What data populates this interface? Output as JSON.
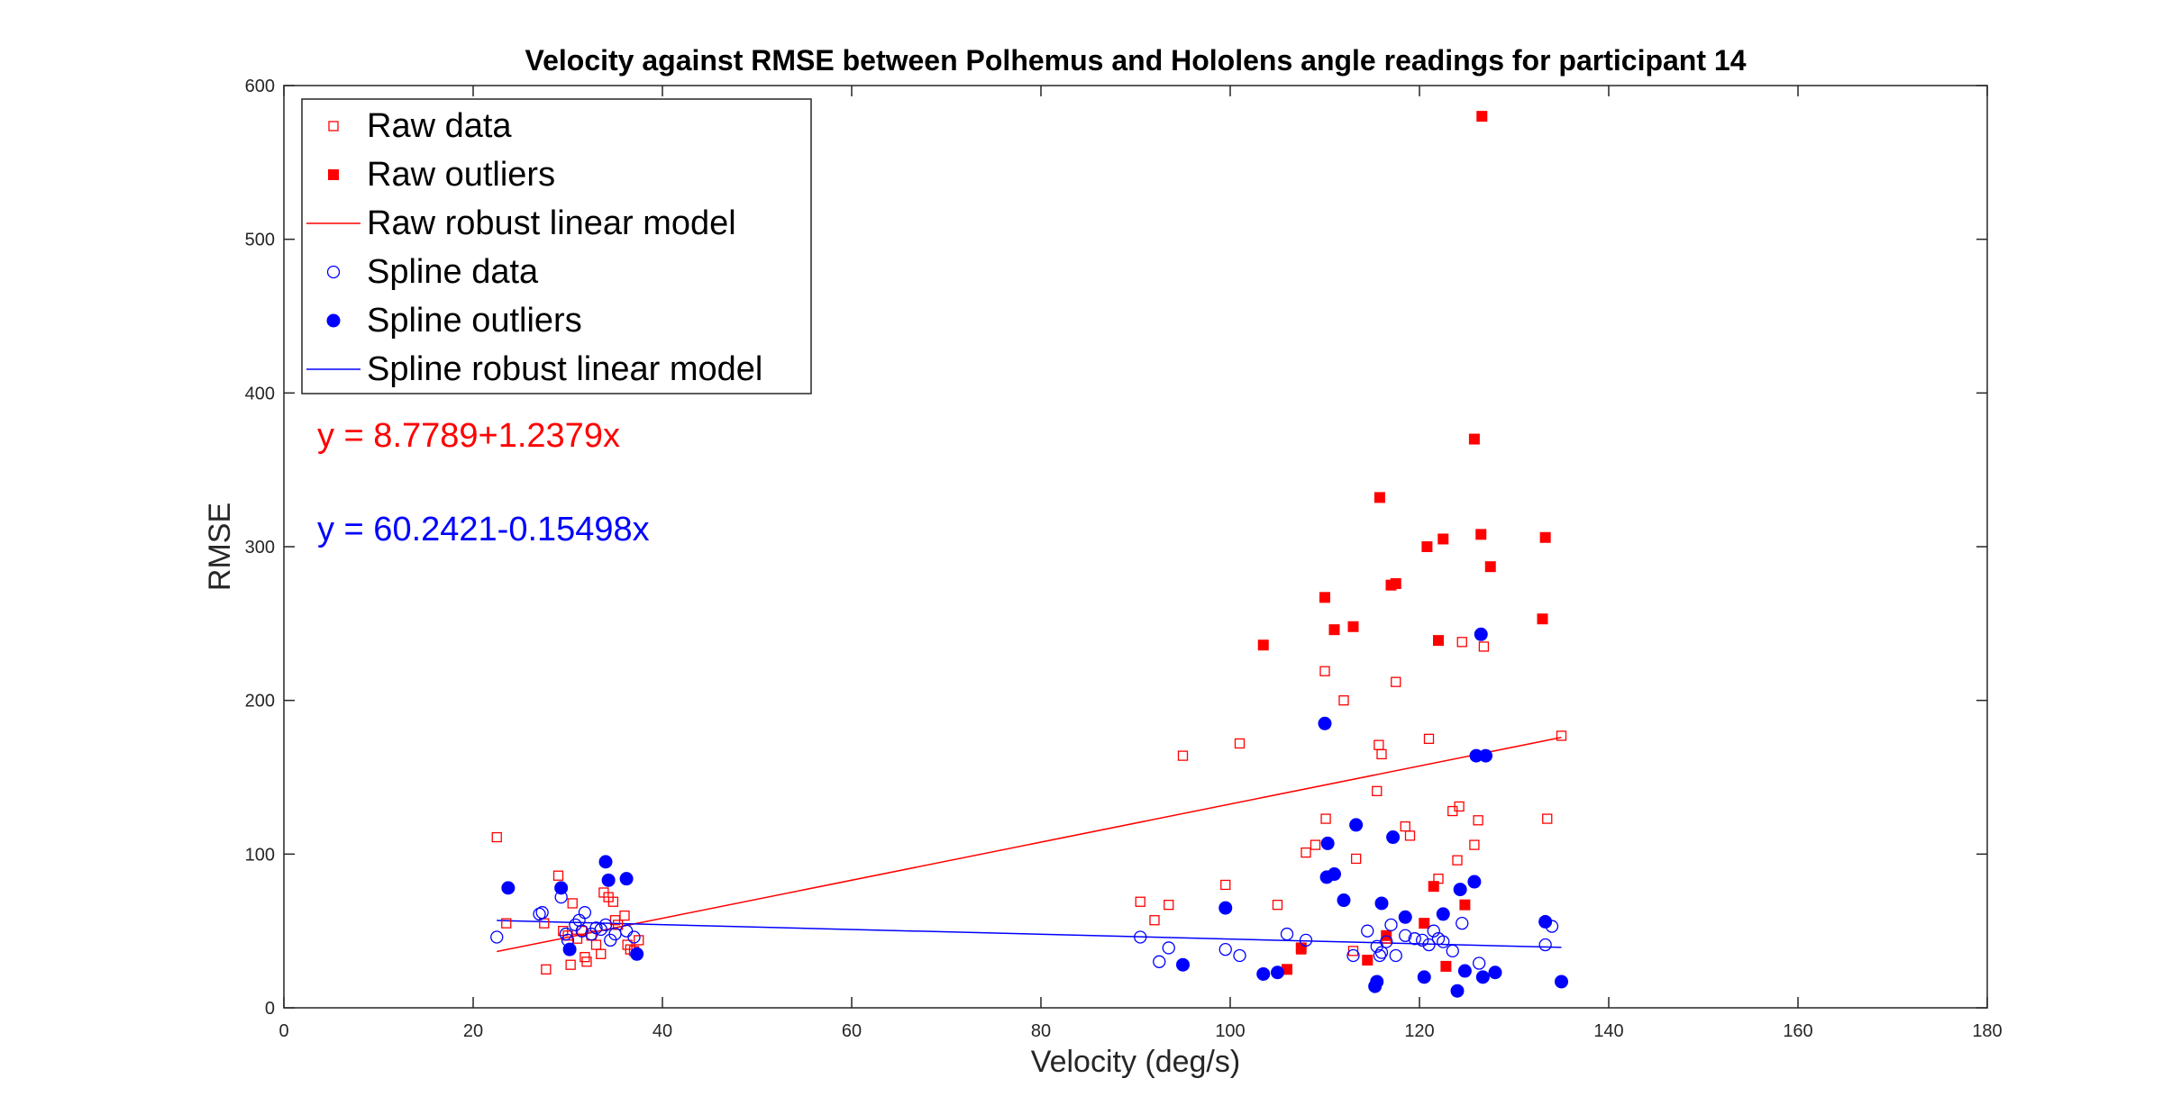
{
  "chart_data": {
    "type": "scatter",
    "title": "Velocity against RMSE between Polhemus and Hololens angle readings for participant 14",
    "xlabel": "Velocity (deg/s)",
    "ylabel": "RMSE",
    "xlim": [
      0,
      180
    ],
    "ylim": [
      0,
      600
    ],
    "xticks": [
      0,
      20,
      40,
      60,
      80,
      100,
      120,
      140,
      160,
      180
    ],
    "yticks": [
      0,
      100,
      200,
      300,
      400,
      500,
      600
    ],
    "grid": false,
    "legend_position": "top-left",
    "annotations": [
      {
        "text": "y = 8.7789+1.2379x",
        "color": "#ff0000"
      },
      {
        "text": "y = 60.2421-0.15498x",
        "color": "#0000ff"
      }
    ],
    "series": [
      {
        "name": "Raw data",
        "kind": "points",
        "marker": "square-open",
        "color": "#ff0000",
        "points": [
          [
            22.5,
            111
          ],
          [
            23.5,
            55
          ],
          [
            27.5,
            55
          ],
          [
            27.7,
            25
          ],
          [
            29,
            86
          ],
          [
            29.5,
            50
          ],
          [
            30,
            47
          ],
          [
            30.3,
            28
          ],
          [
            30.5,
            68
          ],
          [
            31,
            45
          ],
          [
            31.5,
            50
          ],
          [
            31.8,
            33
          ],
          [
            32,
            30
          ],
          [
            32.5,
            47
          ],
          [
            33,
            41
          ],
          [
            33.5,
            35
          ],
          [
            33.8,
            75
          ],
          [
            34.3,
            72
          ],
          [
            34.8,
            69
          ],
          [
            35,
            57
          ],
          [
            35.3,
            54
          ],
          [
            36,
            60
          ],
          [
            36.3,
            41
          ],
          [
            36.6,
            38
          ],
          [
            37,
            37
          ],
          [
            37.5,
            44
          ],
          [
            90.5,
            69
          ],
          [
            92,
            57
          ],
          [
            93.5,
            67
          ],
          [
            95,
            164
          ],
          [
            99.5,
            80
          ],
          [
            101,
            172
          ],
          [
            105,
            67
          ],
          [
            107.5,
            38
          ],
          [
            108,
            101
          ],
          [
            109,
            106
          ],
          [
            110,
            219
          ],
          [
            110.1,
            123
          ],
          [
            112,
            200
          ],
          [
            113,
            37
          ],
          [
            113.3,
            97
          ],
          [
            115.5,
            141
          ],
          [
            115.7,
            171
          ],
          [
            116,
            165
          ],
          [
            116.5,
            45
          ],
          [
            117.5,
            212
          ],
          [
            118.5,
            118
          ],
          [
            119,
            112
          ],
          [
            121,
            175
          ],
          [
            122,
            84
          ],
          [
            123.5,
            128
          ],
          [
            124,
            96
          ],
          [
            124.2,
            131
          ],
          [
            124.5,
            238
          ],
          [
            125.8,
            106
          ],
          [
            126.2,
            122
          ],
          [
            126.8,
            235
          ],
          [
            133.5,
            123
          ],
          [
            135,
            177
          ]
        ]
      },
      {
        "name": "Raw outliers",
        "kind": "points",
        "marker": "square-filled",
        "color": "#ff0000",
        "points": [
          [
            103.5,
            236
          ],
          [
            106,
            25
          ],
          [
            107.5,
            39
          ],
          [
            110,
            267
          ],
          [
            111,
            246
          ],
          [
            113,
            248
          ],
          [
            114.5,
            31
          ],
          [
            115.8,
            332
          ],
          [
            116.5,
            47
          ],
          [
            117,
            275
          ],
          [
            117.5,
            276
          ],
          [
            120.5,
            55
          ],
          [
            120.8,
            300
          ],
          [
            121.5,
            79
          ],
          [
            122,
            239
          ],
          [
            122.5,
            305
          ],
          [
            122.8,
            27
          ],
          [
            124.8,
            67
          ],
          [
            125.8,
            370
          ],
          [
            126.5,
            308
          ],
          [
            126.6,
            580
          ],
          [
            127.5,
            287
          ],
          [
            133,
            253
          ],
          [
            133.3,
            306
          ]
        ]
      },
      {
        "name": "Raw robust linear model",
        "kind": "line",
        "color": "#ff0000",
        "points": [
          [
            22.5,
            36.6
          ],
          [
            135,
            175.9
          ]
        ]
      },
      {
        "name": "Spline data",
        "kind": "points",
        "marker": "circle-open",
        "color": "#0000ff",
        "points": [
          [
            22.5,
            46
          ],
          [
            27,
            61
          ],
          [
            27.3,
            62
          ],
          [
            29.3,
            72
          ],
          [
            29.8,
            48
          ],
          [
            30,
            44
          ],
          [
            30.8,
            54
          ],
          [
            31.2,
            57
          ],
          [
            31.5,
            50
          ],
          [
            31.8,
            62
          ],
          [
            32.5,
            48
          ],
          [
            33,
            52
          ],
          [
            33.5,
            51
          ],
          [
            34,
            54
          ],
          [
            34.5,
            44
          ],
          [
            35,
            48
          ],
          [
            36.2,
            50
          ],
          [
            37,
            46
          ],
          [
            90.5,
            46
          ],
          [
            92.5,
            30
          ],
          [
            93.5,
            39
          ],
          [
            99.5,
            38
          ],
          [
            101,
            34
          ],
          [
            106,
            48
          ],
          [
            108,
            44
          ],
          [
            113,
            34
          ],
          [
            114.5,
            50
          ],
          [
            115.5,
            40
          ],
          [
            115.8,
            34
          ],
          [
            116,
            36
          ],
          [
            116.5,
            43
          ],
          [
            117,
            54
          ],
          [
            117.5,
            34
          ],
          [
            118.5,
            47
          ],
          [
            119.5,
            45
          ],
          [
            120.3,
            44
          ],
          [
            121,
            41
          ],
          [
            121.5,
            50
          ],
          [
            122,
            45
          ],
          [
            122.5,
            43
          ],
          [
            123.5,
            37
          ],
          [
            124.5,
            55
          ],
          [
            126.3,
            29
          ],
          [
            133.3,
            41
          ],
          [
            134,
            53
          ]
        ]
      },
      {
        "name": "Spline outliers",
        "kind": "points",
        "marker": "circle-filled",
        "color": "#0000ff",
        "points": [
          [
            23.7,
            78
          ],
          [
            29.3,
            78
          ],
          [
            30.2,
            38
          ],
          [
            34,
            95
          ],
          [
            34.3,
            83
          ],
          [
            36.2,
            84
          ],
          [
            37.3,
            35
          ],
          [
            95,
            28
          ],
          [
            99.5,
            65
          ],
          [
            103.5,
            22
          ],
          [
            105,
            23
          ],
          [
            110,
            185
          ],
          [
            110.2,
            85
          ],
          [
            110.3,
            107
          ],
          [
            111,
            87
          ],
          [
            112,
            70
          ],
          [
            113.3,
            119
          ],
          [
            115.3,
            14
          ],
          [
            115.5,
            17
          ],
          [
            116,
            68
          ],
          [
            117.2,
            111
          ],
          [
            118.5,
            59
          ],
          [
            120.5,
            20
          ],
          [
            122.5,
            61
          ],
          [
            124,
            11
          ],
          [
            124.3,
            77
          ],
          [
            124.8,
            24
          ],
          [
            125.8,
            82
          ],
          [
            126,
            164
          ],
          [
            126.5,
            243
          ],
          [
            126.7,
            20
          ],
          [
            127,
            164
          ],
          [
            128,
            23
          ],
          [
            133.3,
            56
          ],
          [
            135,
            17
          ]
        ]
      },
      {
        "name": "Spline robust linear model",
        "kind": "line",
        "color": "#0000ff",
        "points": [
          [
            22.5,
            56.8
          ],
          [
            135,
            39.3
          ]
        ]
      }
    ]
  }
}
